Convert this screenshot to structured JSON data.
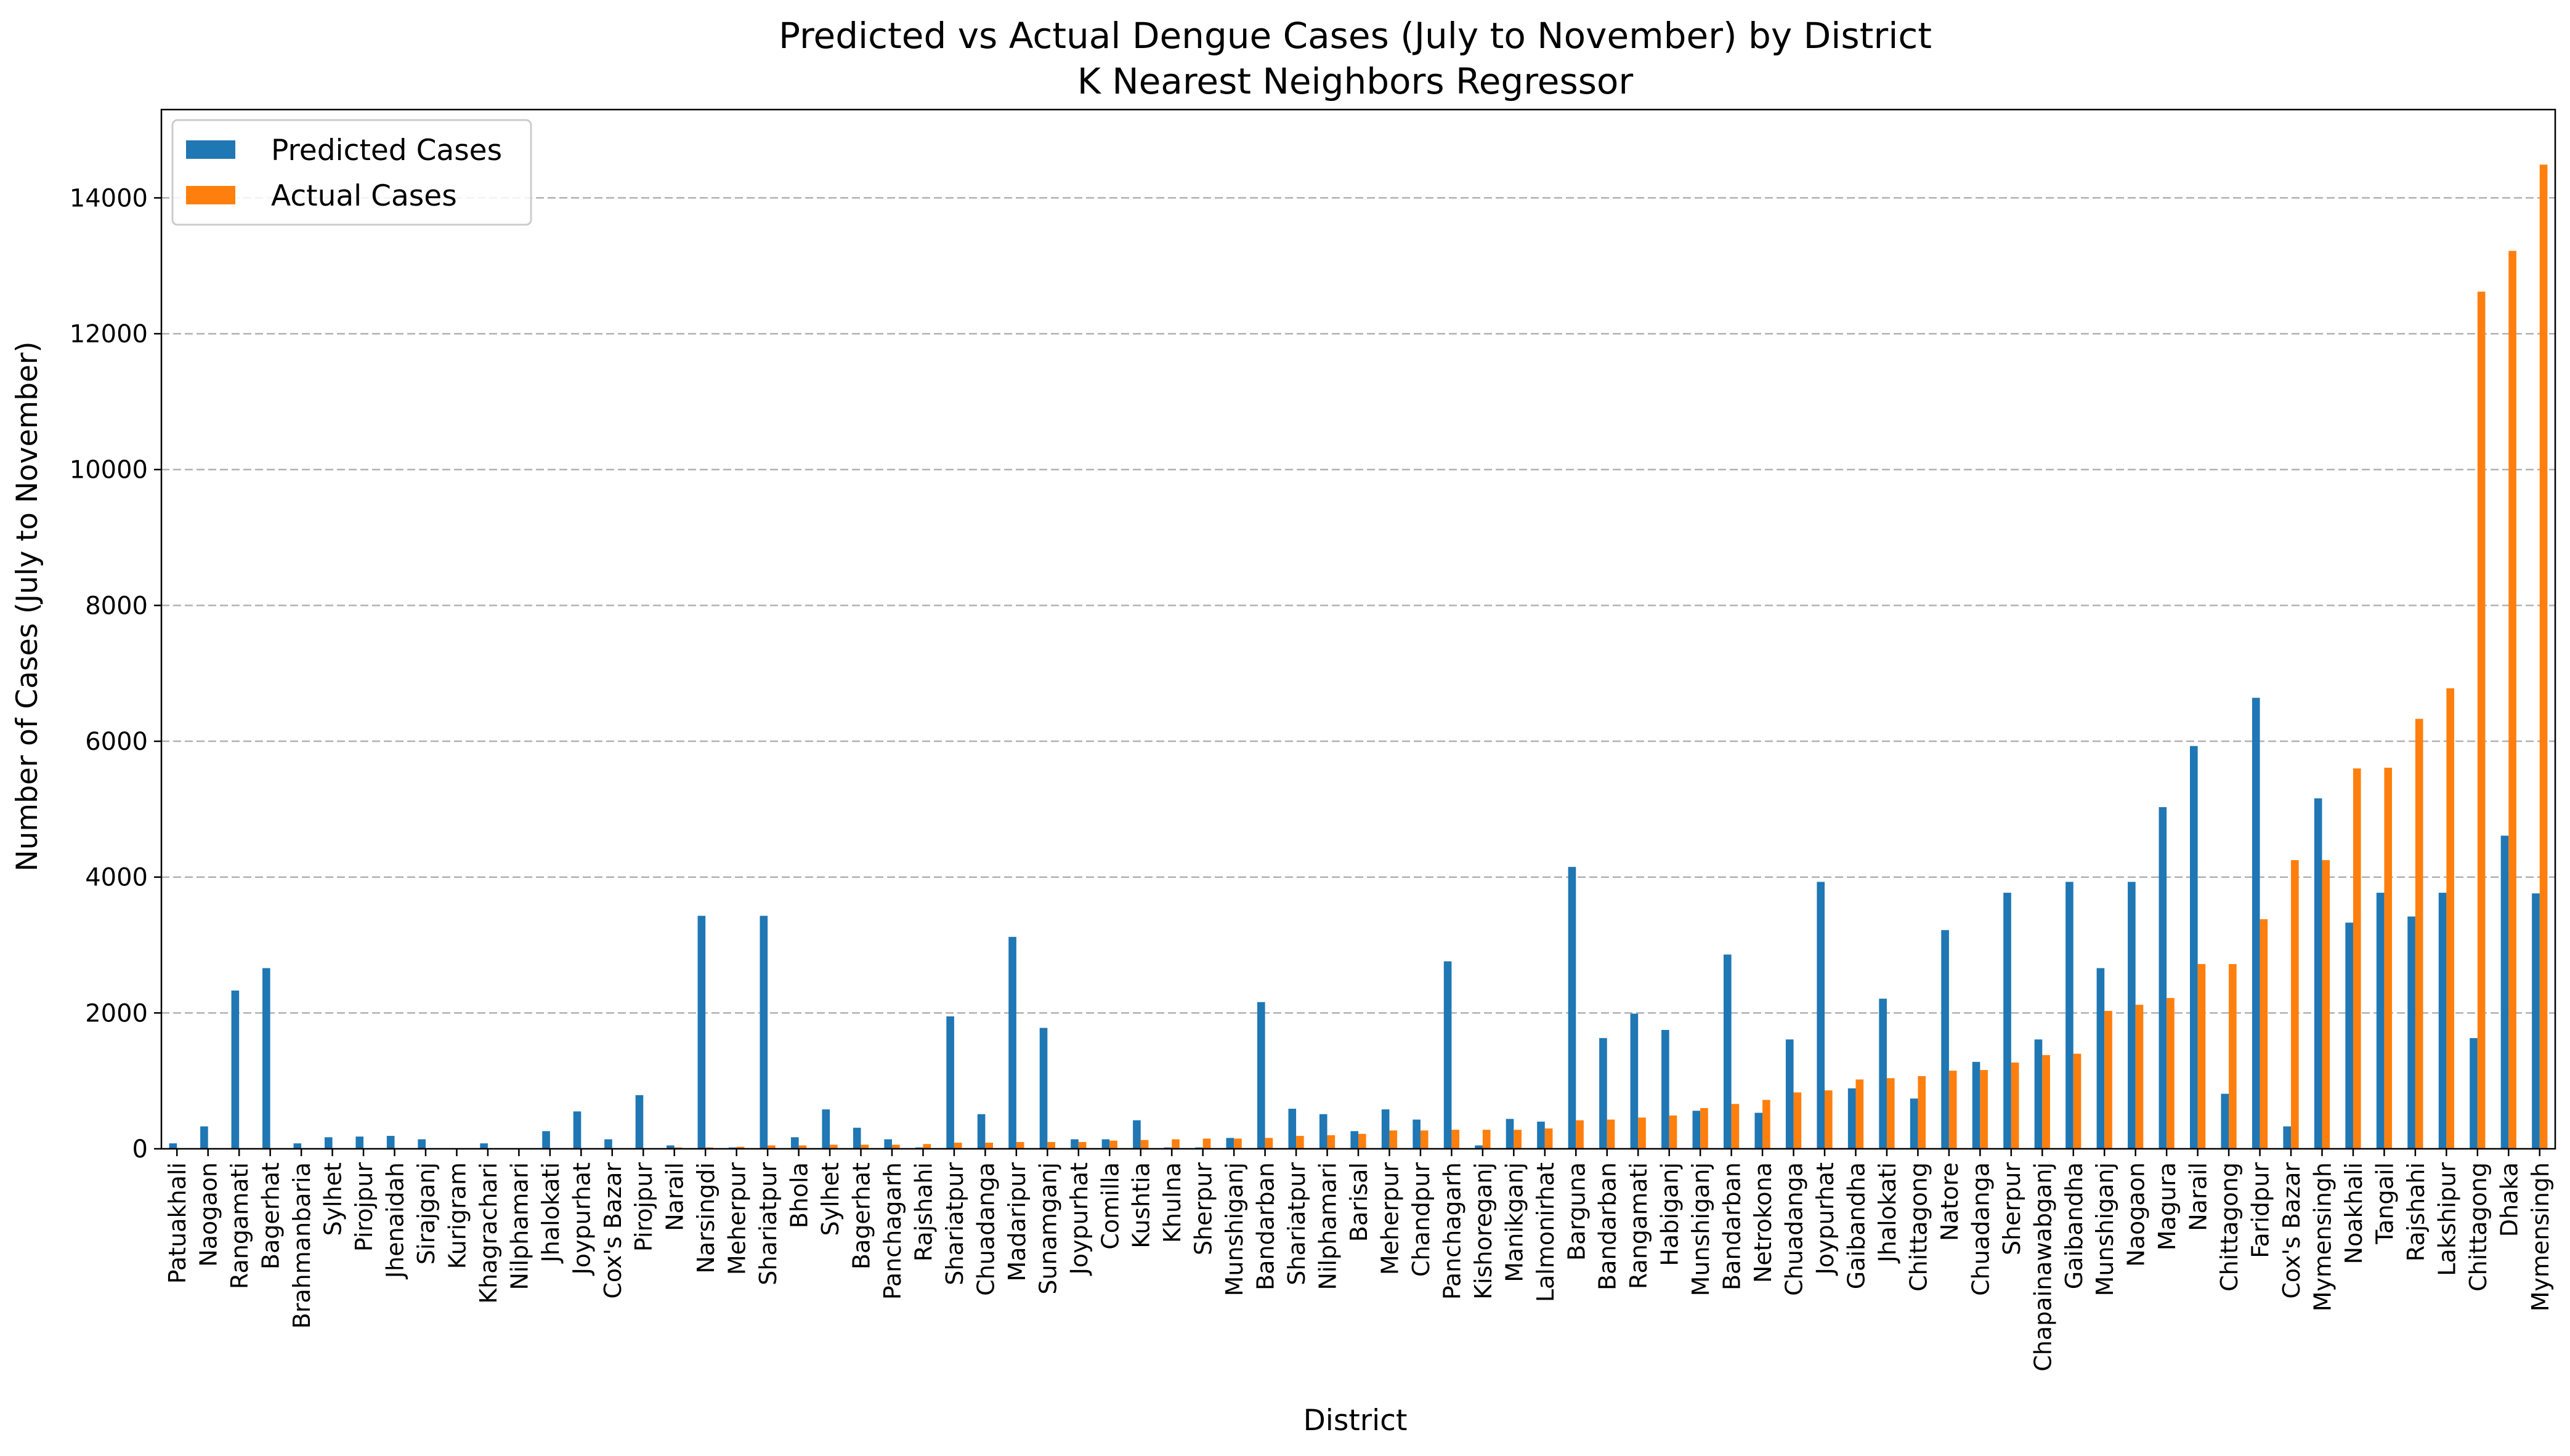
{
  "chart_data": {
    "type": "bar",
    "title": "Predicted vs Actual Dengue Cases (July to November) by District",
    "subtitle": "K Nearest Neighbors Regressor",
    "xlabel": "District",
    "ylabel": "Number of Cases (July to November)",
    "ylim": [
      0,
      15300
    ],
    "yticks": [
      0,
      2000,
      4000,
      6000,
      8000,
      10000,
      12000,
      14000
    ],
    "grid": "y-dashed",
    "legend_position": "top-left",
    "categories": [
      "Patuakhali",
      "Naogaon",
      "Rangamati",
      "Bagerhat",
      "Brahmanbaria",
      "Sylhet",
      "Pirojpur",
      "Jhenaidah",
      "Sirajganj",
      "Kurigram",
      "Khagrachari",
      "Nilphamari",
      "Jhalokati",
      "Joypurhat",
      "Cox's Bazar",
      "Pirojpur",
      "Narail",
      "Narsingdi",
      "Meherpur",
      "Shariatpur",
      "Bhola",
      "Sylhet",
      "Bagerhat",
      "Panchagarh",
      "Rajshahi",
      "Shariatpur",
      "Chuadanga",
      "Madaripur",
      "Sunamganj",
      "Joypurhat",
      "Comilla",
      "Kushtia",
      "Khulna",
      "Sherpur",
      "Munshiganj",
      "Bandarban",
      "Shariatpur",
      "Nilphamari",
      "Barisal",
      "Meherpur",
      "Chandpur",
      "Panchagarh",
      "Kishoreganj",
      "Manikganj",
      "Lalmonirhat",
      "Barguna",
      "Bandarban",
      "Rangamati",
      "Habiganj",
      "Munshiganj",
      "Bandarban",
      "Netrokona",
      "Chuadanga",
      "Joypurhat",
      "Gaibandha",
      "Jhalokati",
      "Chittagong",
      "Natore",
      "Chuadanga",
      "Sherpur",
      "Chapainawabganj",
      "Gaibandha",
      "Munshiganj",
      "Naogaon",
      "Magura",
      "Narail",
      "Chittagong",
      "Faridpur",
      "Cox's Bazar",
      "Mymensingh",
      "Noakhali",
      "Tangail",
      "Rajshahi",
      "Lakshipur",
      "Chittagong",
      "Dhaka",
      "Mymensingh"
    ],
    "series": [
      {
        "name": "Predicted Cases",
        "color": "#1f77b4",
        "values": [
          80,
          330,
          2330,
          2660,
          80,
          170,
          180,
          190,
          140,
          0,
          80,
          0,
          260,
          550,
          140,
          790,
          50,
          3430,
          20,
          3430,
          170,
          580,
          310,
          140,
          20,
          1950,
          510,
          3120,
          1780,
          140,
          140,
          420,
          20,
          20,
          160,
          2160,
          590,
          510,
          260,
          580,
          430,
          2760,
          50,
          440,
          400,
          4150,
          1630,
          1990,
          1750,
          560,
          2860,
          530,
          1610,
          3930,
          890,
          2210,
          740,
          3220,
          1280,
          3770,
          1610,
          3930,
          2660,
          3930,
          5030,
          5930,
          810,
          6640,
          330,
          5160,
          3330,
          3770,
          3420,
          3770,
          1630,
          4610,
          3760
        ]
      },
      {
        "name": "Actual Cases",
        "color": "#ff7f0e",
        "values": [
          0,
          0,
          0,
          0,
          0,
          0,
          0,
          0,
          0,
          0,
          0,
          0,
          0,
          0,
          0,
          0,
          20,
          20,
          30,
          50,
          50,
          60,
          60,
          60,
          70,
          90,
          90,
          100,
          100,
          100,
          120,
          130,
          140,
          150,
          150,
          160,
          190,
          200,
          220,
          270,
          270,
          280,
          280,
          280,
          300,
          420,
          430,
          460,
          490,
          600,
          660,
          720,
          830,
          860,
          1020,
          1040,
          1070,
          1150,
          1160,
          1270,
          1380,
          1400,
          2030,
          2120,
          2220,
          2720,
          2720,
          3380,
          4250,
          4250,
          5600,
          5610,
          6330,
          6780,
          12620,
          13220,
          14490
        ]
      }
    ]
  }
}
